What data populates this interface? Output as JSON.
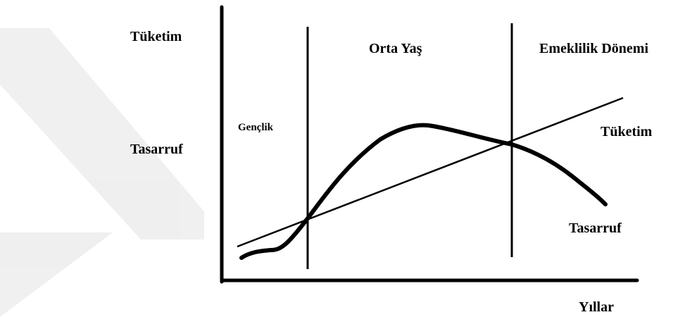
{
  "axes": {
    "y_label_top": "Tüketim",
    "y_label_middle": "Tasarruf",
    "x_label": "Yıllar"
  },
  "phases": [
    "Gençlik",
    "Orta Yaş",
    "Emeklilik Dönemi"
  ],
  "curves": {
    "consumption": "Tüketim",
    "saving": "Tasarruf"
  }
}
